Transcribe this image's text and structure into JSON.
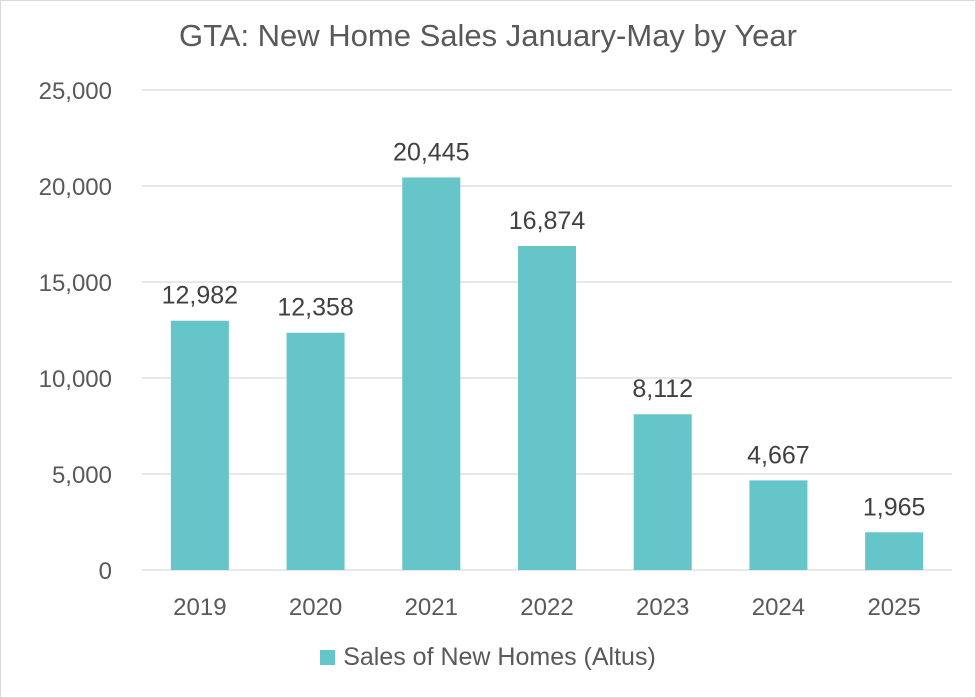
{
  "chart_data": {
    "type": "bar",
    "title": "GTA: New Home Sales January-May by Year",
    "xlabel": "",
    "ylabel": "",
    "categories": [
      "2019",
      "2020",
      "2021",
      "2022",
      "2023",
      "2024",
      "2025"
    ],
    "series": [
      {
        "name": "Sales of New Homes (Altus)",
        "values": [
          12982,
          12358,
          20445,
          16874,
          8112,
          4667,
          1965
        ],
        "color": "#66c5c8"
      }
    ],
    "data_labels": [
      "12,982",
      "12,358",
      "20,445",
      "16,874",
      "8,112",
      "4,667",
      "1,965"
    ],
    "ylim": [
      0,
      25000
    ],
    "yticks": [
      0,
      5000,
      10000,
      15000,
      20000,
      25000
    ],
    "ytick_labels": [
      "0",
      "5,000",
      "10,000",
      "15,000",
      "20,000",
      "25,000"
    ],
    "grid": true,
    "legend_position": "bottom"
  },
  "colors": {
    "bar": "#66c5c8",
    "grid": "#d9d9d9",
    "text": "#595959",
    "label_text": "#404040"
  }
}
